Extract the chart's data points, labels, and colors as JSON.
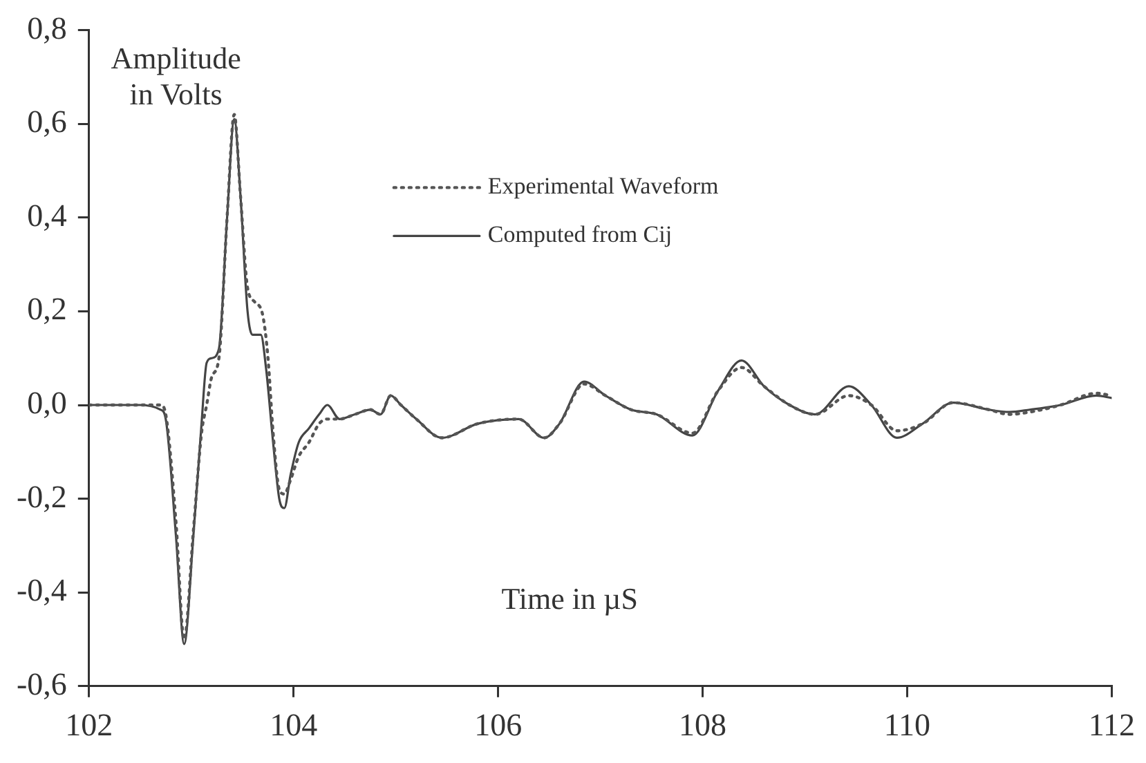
{
  "chart_data": {
    "type": "line",
    "xlabel": "Time in µS",
    "ylabel": "Amplitude in Volts",
    "xlim": [
      102,
      112
    ],
    "xticks": [
      102,
      104,
      106,
      108,
      110,
      112
    ],
    "ylim": [
      -0.6,
      0.8
    ],
    "yticks": [
      {
        "value": -0.6,
        "label": "-0,6"
      },
      {
        "value": -0.4,
        "label": "-0,4"
      },
      {
        "value": -0.2,
        "label": "-0,2"
      },
      {
        "value": 0,
        "label": "0,0"
      },
      {
        "value": 0.2,
        "label": "0,2"
      },
      {
        "value": 0.4,
        "label": "0,4"
      },
      {
        "value": 0.6,
        "label": "0,6"
      },
      {
        "value": 0.8,
        "label": "0,8"
      }
    ],
    "grid": false,
    "legend": "top right",
    "marker": "none",
    "series": [
      {
        "name": "Experimental Waveform",
        "color": "#555555",
        "line_style": "dotted",
        "x": [
          102,
          102.5,
          102.7,
          102.75,
          102.85,
          102.93,
          103.02,
          103.1,
          103.15,
          103.2,
          103.27,
          103.35,
          103.42,
          103.48,
          103.55,
          103.62,
          103.7,
          103.75,
          103.8,
          103.86,
          103.91,
          103.97,
          104.05,
          104.15,
          104.25,
          104.33,
          104.45,
          104.6,
          104.75,
          104.85,
          104.95,
          105.05,
          105.2,
          105.45,
          105.8,
          106.2,
          106.45,
          106.6,
          106.84,
          107.05,
          107.3,
          107.55,
          107.9,
          108.15,
          108.38,
          108.6,
          108.85,
          109.1,
          109.43,
          109.65,
          109.9,
          110.15,
          110.45,
          110.8,
          111.0,
          111.2,
          111.5,
          111.85,
          112
        ],
        "values": [
          0,
          0,
          0,
          -0.02,
          -0.25,
          -0.5,
          -0.27,
          -0.06,
          0.0,
          0.06,
          0.1,
          0.4,
          0.62,
          0.45,
          0.25,
          0.22,
          0.19,
          0.1,
          -0.06,
          -0.18,
          -0.19,
          -0.16,
          -0.11,
          -0.08,
          -0.04,
          -0.03,
          -0.03,
          -0.02,
          -0.01,
          -0.02,
          0.02,
          0.0,
          -0.03,
          -0.07,
          -0.04,
          -0.03,
          -0.07,
          -0.04,
          0.045,
          0.02,
          -0.01,
          -0.02,
          -0.06,
          0.03,
          0.08,
          0.04,
          0.0,
          -0.02,
          0.02,
          0.0,
          -0.055,
          -0.04,
          0.005,
          -0.01,
          -0.02,
          -0.015,
          0.0,
          0.025,
          0.02
        ]
      },
      {
        "name": "Computed from Cij",
        "color": "#444444",
        "line_style": "solid",
        "x": [
          102,
          102.5,
          102.7,
          102.75,
          102.85,
          102.93,
          103.02,
          103.1,
          103.15,
          103.2,
          103.27,
          103.35,
          103.42,
          103.48,
          103.55,
          103.6,
          103.68,
          103.73,
          103.8,
          103.86,
          103.91,
          103.97,
          104.05,
          104.15,
          104.25,
          104.33,
          104.45,
          104.6,
          104.75,
          104.85,
          104.95,
          105.05,
          105.2,
          105.45,
          105.8,
          106.2,
          106.45,
          106.6,
          106.84,
          107.05,
          107.3,
          107.55,
          107.9,
          108.15,
          108.38,
          108.6,
          108.85,
          109.1,
          109.43,
          109.65,
          109.9,
          110.15,
          110.45,
          110.8,
          111.0,
          111.2,
          111.5,
          111.85,
          112
        ],
        "values": [
          0,
          0,
          -0.01,
          -0.03,
          -0.28,
          -0.51,
          -0.28,
          -0.04,
          0.09,
          0.1,
          0.12,
          0.4,
          0.61,
          0.45,
          0.2,
          0.15,
          0.15,
          0.08,
          -0.08,
          -0.2,
          -0.22,
          -0.15,
          -0.08,
          -0.05,
          -0.02,
          0.0,
          -0.03,
          -0.02,
          -0.01,
          -0.02,
          0.02,
          0.0,
          -0.03,
          -0.07,
          -0.04,
          -0.03,
          -0.07,
          -0.04,
          0.05,
          0.02,
          -0.01,
          -0.02,
          -0.065,
          0.03,
          0.095,
          0.04,
          0.0,
          -0.02,
          0.04,
          0.0,
          -0.07,
          -0.04,
          0.005,
          -0.01,
          -0.015,
          -0.01,
          0.0,
          0.02,
          0.015
        ]
      }
    ]
  }
}
